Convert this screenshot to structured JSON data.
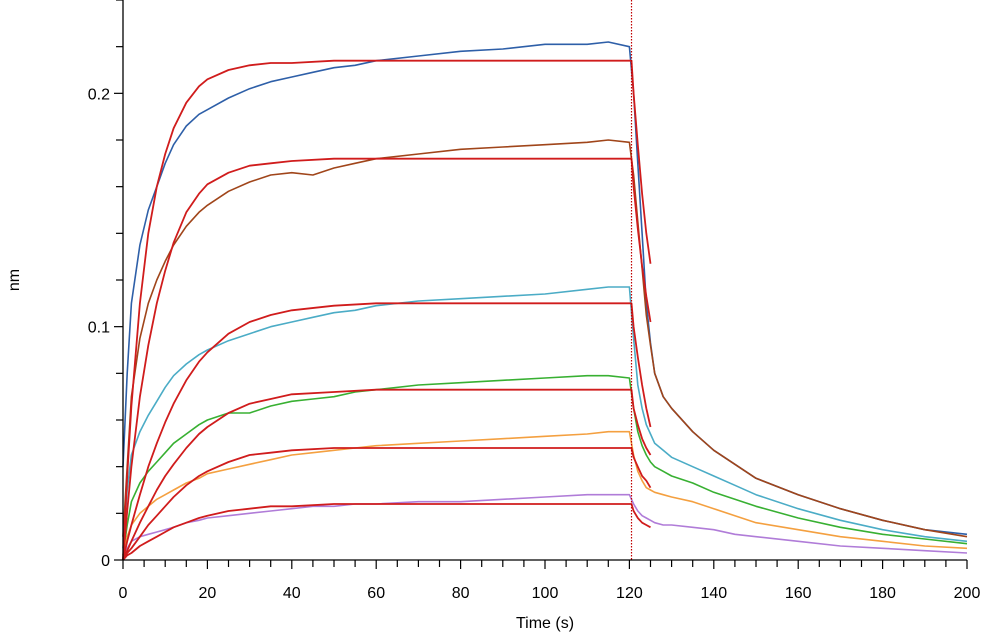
{
  "chart_data": {
    "type": "line",
    "title": "",
    "xlabel": "Time (s)",
    "ylabel": "nm",
    "xlim": [
      0,
      200
    ],
    "ylim": [
      0,
      0.24
    ],
    "x_ticks": [
      0,
      20,
      40,
      60,
      80,
      100,
      120,
      140,
      160,
      180,
      200
    ],
    "x_tick_labels": [
      "0",
      "20",
      "40",
      "60",
      "80",
      "100",
      "120",
      "140",
      "160",
      "180",
      "200"
    ],
    "y_ticks": [
      0,
      0.1,
      0.2
    ],
    "y_tick_labels": [
      "0",
      "0.1",
      "0.2"
    ],
    "grid": false,
    "legend": "none",
    "marker_line": {
      "x": 120.5,
      "color": "#c00000",
      "style": "dotted"
    },
    "series": [
      {
        "color": "#2e5fa8",
        "x": [
          0,
          1,
          2,
          4,
          6,
          8,
          10,
          12,
          15,
          18,
          20,
          25,
          30,
          35,
          40,
          45,
          50,
          55,
          60,
          70,
          80,
          90,
          100,
          110,
          115,
          120,
          121,
          122,
          123,
          124,
          125,
          126,
          128,
          130,
          135,
          140,
          145,
          150,
          160,
          170,
          180,
          190,
          200
        ],
        "y": [
          0.04,
          0.08,
          0.11,
          0.135,
          0.15,
          0.16,
          0.17,
          0.178,
          0.186,
          0.191,
          0.193,
          0.198,
          0.202,
          0.205,
          0.207,
          0.209,
          0.211,
          0.212,
          0.214,
          0.216,
          0.218,
          0.219,
          0.221,
          0.221,
          0.222,
          0.22,
          0.2,
          0.17,
          0.14,
          0.11,
          0.093,
          0.08,
          0.07,
          0.065,
          0.055,
          0.047,
          0.041,
          0.035,
          0.028,
          0.022,
          0.017,
          0.013,
          0.011
        ]
      },
      {
        "color": "#a0451a",
        "x": [
          0,
          1,
          2,
          4,
          6,
          8,
          10,
          12,
          15,
          18,
          20,
          25,
          30,
          35,
          40,
          45,
          50,
          55,
          60,
          70,
          80,
          90,
          100,
          110,
          115,
          120,
          121,
          122,
          123,
          124,
          125,
          126,
          128,
          130,
          135,
          140,
          145,
          150,
          160,
          170,
          180,
          190,
          200
        ],
        "y": [
          0.01,
          0.04,
          0.07,
          0.095,
          0.11,
          0.12,
          0.128,
          0.135,
          0.143,
          0.149,
          0.152,
          0.158,
          0.162,
          0.165,
          0.166,
          0.165,
          0.168,
          0.17,
          0.172,
          0.174,
          0.176,
          0.177,
          0.178,
          0.179,
          0.18,
          0.179,
          0.165,
          0.145,
          0.125,
          0.105,
          0.092,
          0.08,
          0.07,
          0.065,
          0.055,
          0.047,
          0.041,
          0.035,
          0.028,
          0.022,
          0.017,
          0.013,
          0.01
        ]
      },
      {
        "color": "#4bacc6",
        "x": [
          0,
          1,
          2,
          4,
          6,
          8,
          10,
          12,
          15,
          18,
          20,
          25,
          30,
          35,
          40,
          45,
          50,
          55,
          60,
          70,
          80,
          90,
          100,
          110,
          115,
          120,
          121,
          122,
          123,
          124,
          125,
          126,
          128,
          130,
          135,
          140,
          145,
          150,
          160,
          170,
          180,
          190,
          200
        ],
        "y": [
          0.005,
          0.03,
          0.045,
          0.055,
          0.062,
          0.068,
          0.074,
          0.079,
          0.084,
          0.088,
          0.09,
          0.094,
          0.097,
          0.1,
          0.102,
          0.104,
          0.106,
          0.107,
          0.109,
          0.111,
          0.112,
          0.113,
          0.114,
          0.116,
          0.117,
          0.117,
          0.095,
          0.075,
          0.065,
          0.058,
          0.054,
          0.05,
          0.047,
          0.044,
          0.04,
          0.036,
          0.032,
          0.028,
          0.022,
          0.017,
          0.013,
          0.01,
          0.008
        ]
      },
      {
        "color": "#38b032",
        "x": [
          0,
          1,
          2,
          4,
          6,
          8,
          10,
          12,
          15,
          18,
          20,
          25,
          30,
          35,
          40,
          45,
          50,
          55,
          60,
          70,
          80,
          90,
          100,
          110,
          115,
          120,
          121,
          122,
          123,
          124,
          125,
          126,
          128,
          130,
          135,
          140,
          145,
          150,
          160,
          170,
          180,
          190,
          200
        ],
        "y": [
          0.002,
          0.015,
          0.025,
          0.033,
          0.038,
          0.042,
          0.046,
          0.05,
          0.054,
          0.058,
          0.06,
          0.063,
          0.063,
          0.066,
          0.068,
          0.069,
          0.07,
          0.072,
          0.073,
          0.075,
          0.076,
          0.077,
          0.078,
          0.079,
          0.079,
          0.078,
          0.065,
          0.055,
          0.049,
          0.045,
          0.042,
          0.04,
          0.038,
          0.036,
          0.033,
          0.029,
          0.026,
          0.023,
          0.018,
          0.014,
          0.011,
          0.009,
          0.007
        ]
      },
      {
        "color": "#f4a040",
        "x": [
          0,
          1,
          2,
          4,
          6,
          8,
          10,
          12,
          15,
          18,
          20,
          25,
          30,
          35,
          40,
          45,
          50,
          55,
          60,
          70,
          80,
          90,
          100,
          110,
          115,
          120,
          121,
          122,
          123,
          124,
          125,
          126,
          128,
          130,
          135,
          140,
          145,
          150,
          160,
          170,
          180,
          190,
          200
        ],
        "y": [
          0.002,
          0.01,
          0.015,
          0.02,
          0.023,
          0.026,
          0.028,
          0.03,
          0.033,
          0.035,
          0.037,
          0.039,
          0.041,
          0.043,
          0.045,
          0.046,
          0.047,
          0.048,
          0.049,
          0.05,
          0.051,
          0.052,
          0.053,
          0.054,
          0.055,
          0.055,
          0.045,
          0.038,
          0.034,
          0.031,
          0.03,
          0.029,
          0.028,
          0.027,
          0.025,
          0.022,
          0.019,
          0.016,
          0.013,
          0.01,
          0.008,
          0.006,
          0.005
        ]
      },
      {
        "color": "#b07cd8",
        "x": [
          0,
          1,
          2,
          4,
          6,
          8,
          10,
          12,
          15,
          18,
          20,
          25,
          30,
          35,
          40,
          45,
          50,
          55,
          60,
          70,
          80,
          90,
          100,
          110,
          115,
          120,
          121,
          122,
          123,
          124,
          125,
          126,
          128,
          130,
          135,
          140,
          145,
          150,
          160,
          170,
          180,
          190,
          200
        ],
        "y": [
          0.001,
          0.005,
          0.008,
          0.01,
          0.011,
          0.012,
          0.013,
          0.014,
          0.016,
          0.017,
          0.018,
          0.019,
          0.02,
          0.021,
          0.022,
          0.023,
          0.023,
          0.024,
          0.024,
          0.025,
          0.025,
          0.026,
          0.027,
          0.028,
          0.028,
          0.028,
          0.024,
          0.021,
          0.019,
          0.018,
          0.017,
          0.016,
          0.015,
          0.015,
          0.014,
          0.013,
          0.011,
          0.01,
          0.008,
          0.006,
          0.005,
          0.004,
          0.003
        ]
      }
    ],
    "fits": [
      {
        "color": "#d01c1c",
        "x": [
          0,
          1,
          2,
          4,
          6,
          8,
          10,
          12,
          15,
          18,
          20,
          25,
          30,
          35,
          40,
          50,
          60,
          80,
          100,
          120,
          120.5,
          121,
          122,
          123,
          124,
          125
        ],
        "y": [
          0,
          0.036,
          0.066,
          0.11,
          0.14,
          0.16,
          0.174,
          0.185,
          0.196,
          0.203,
          0.206,
          0.21,
          0.212,
          0.213,
          0.213,
          0.214,
          0.214,
          0.214,
          0.214,
          0.214,
          0.214,
          0.2,
          0.178,
          0.157,
          0.14,
          0.127
        ]
      },
      {
        "color": "#d01c1c",
        "x": [
          0,
          1,
          2,
          4,
          6,
          8,
          10,
          12,
          15,
          18,
          20,
          25,
          30,
          35,
          40,
          50,
          60,
          80,
          100,
          120,
          120.5,
          121,
          122,
          123,
          124,
          125
        ],
        "y": [
          0,
          0.021,
          0.04,
          0.07,
          0.092,
          0.11,
          0.124,
          0.136,
          0.149,
          0.157,
          0.161,
          0.166,
          0.169,
          0.17,
          0.171,
          0.172,
          0.172,
          0.172,
          0.172,
          0.172,
          0.172,
          0.16,
          0.142,
          0.126,
          0.113,
          0.102
        ]
      },
      {
        "color": "#d01c1c",
        "x": [
          0,
          1,
          2,
          4,
          6,
          8,
          10,
          12,
          15,
          18,
          20,
          25,
          30,
          35,
          40,
          50,
          60,
          80,
          100,
          120,
          120.5,
          121,
          122,
          123,
          124,
          125
        ],
        "y": [
          0,
          0.008,
          0.015,
          0.028,
          0.04,
          0.05,
          0.059,
          0.067,
          0.077,
          0.085,
          0.089,
          0.097,
          0.102,
          0.105,
          0.107,
          0.109,
          0.11,
          0.11,
          0.11,
          0.11,
          0.11,
          0.1,
          0.087,
          0.075,
          0.065,
          0.057
        ]
      },
      {
        "color": "#d01c1c",
        "x": [
          0,
          1,
          2,
          4,
          6,
          8,
          10,
          12,
          15,
          18,
          20,
          25,
          30,
          35,
          40,
          50,
          60,
          80,
          100,
          120,
          120.5,
          121,
          122,
          123,
          124,
          125
        ],
        "y": [
          0,
          0.004,
          0.008,
          0.016,
          0.023,
          0.03,
          0.036,
          0.041,
          0.048,
          0.054,
          0.057,
          0.063,
          0.067,
          0.069,
          0.071,
          0.072,
          0.073,
          0.073,
          0.073,
          0.073,
          0.073,
          0.065,
          0.058,
          0.052,
          0.048,
          0.045
        ]
      },
      {
        "color": "#d01c1c",
        "x": [
          0,
          1,
          2,
          4,
          6,
          8,
          10,
          12,
          15,
          18,
          20,
          25,
          30,
          35,
          40,
          50,
          60,
          80,
          100,
          120,
          120.5,
          121,
          122,
          123,
          124,
          125
        ],
        "y": [
          0,
          0.003,
          0.005,
          0.01,
          0.015,
          0.019,
          0.023,
          0.027,
          0.032,
          0.036,
          0.038,
          0.042,
          0.045,
          0.046,
          0.047,
          0.048,
          0.048,
          0.048,
          0.048,
          0.048,
          0.048,
          0.044,
          0.04,
          0.036,
          0.034,
          0.031
        ]
      },
      {
        "color": "#d01c1c",
        "x": [
          0,
          1,
          2,
          4,
          6,
          8,
          10,
          12,
          15,
          18,
          20,
          25,
          30,
          35,
          40,
          50,
          60,
          80,
          100,
          120,
          120.5,
          121,
          122,
          123,
          124,
          125
        ],
        "y": [
          0,
          0.002,
          0.003,
          0.006,
          0.008,
          0.01,
          0.012,
          0.014,
          0.016,
          0.018,
          0.019,
          0.021,
          0.022,
          0.023,
          0.023,
          0.024,
          0.024,
          0.024,
          0.024,
          0.024,
          0.024,
          0.021,
          0.018,
          0.016,
          0.015,
          0.014
        ]
      }
    ]
  }
}
